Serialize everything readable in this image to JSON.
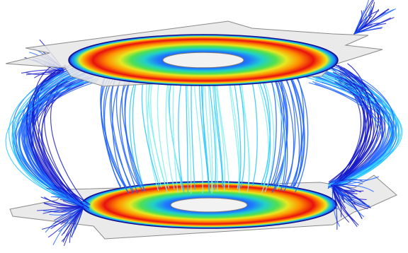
{
  "scene": {
    "subject": "coil-magnetic-field-streamlines",
    "background_color": "#ffffff",
    "plate_color": "#e6e6e6",
    "plate_edge_color": "#8a8a8a",
    "field_line_colors": [
      "#1418c8",
      "#1e64ff",
      "#28c8ff",
      "#7ff0f0"
    ],
    "ring_colormap": [
      "#1010a0",
      "#1e78ff",
      "#20d0c8",
      "#50e050",
      "#e8e820",
      "#ff8c00",
      "#e81010"
    ],
    "ring_count": 2,
    "streamline_groups": [
      "central-bundle",
      "left-return-loops",
      "right-return-loops",
      "outer-fringe"
    ]
  }
}
